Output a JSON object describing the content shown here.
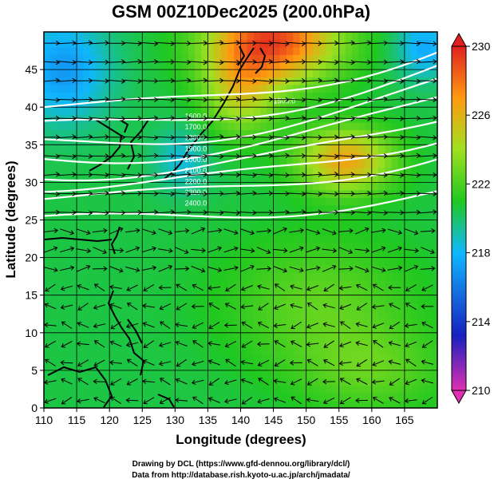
{
  "title": "GSM 00Z10Dec2025 (200.0hPa)",
  "xlabel": "Longitude (degrees)",
  "ylabel": "Latitude (degrees)",
  "credits": [
    "Drawing by DCL (https://www.gfd-dennou.org/library/dcl/)",
    "Data from http://database.rish.kyoto-u.ac.jp/arch/jmadata/"
  ],
  "chart_data": {
    "type": "heatmap",
    "title": "GSM 00Z10Dec2025 (200.0hPa)",
    "xlabel": "Longitude (degrees)",
    "ylabel": "Latitude (degrees)",
    "xlim": [
      110,
      170
    ],
    "ylim": [
      0,
      50
    ],
    "xticks": [
      110,
      115,
      120,
      125,
      130,
      135,
      140,
      145,
      150,
      155,
      160,
      165
    ],
    "yticks": [
      0,
      5,
      10,
      15,
      20,
      25,
      30,
      35,
      40,
      45
    ],
    "colorbar": {
      "min": 210,
      "max": 230,
      "ticks": [
        210,
        214,
        218,
        222,
        226,
        230
      ],
      "colors": [
        "#e02fb0",
        "#1820c0",
        "#10b8ff",
        "#20c820",
        "#a0e020",
        "#ff9a10",
        "#e02020"
      ]
    },
    "temperature_field": {
      "background": 220.5,
      "features": [
        {
          "lon": 145,
          "lat": 49,
          "value": 229,
          "sigma_lon": 7,
          "sigma_lat": 4
        },
        {
          "lon": 156,
          "lat": 33,
          "value": 226.5,
          "sigma_lon": 5,
          "sigma_lat": 3
        },
        {
          "lon": 113,
          "lat": 45,
          "value": 217,
          "sigma_lon": 5,
          "sigma_lat": 5
        },
        {
          "lon": 168,
          "lat": 48,
          "value": 217.5,
          "sigma_lon": 3,
          "sigma_lat": 3
        },
        {
          "lon": 131,
          "lat": 33,
          "value": 218.5,
          "sigma_lon": 3,
          "sigma_lat": 3
        },
        {
          "lon": 140,
          "lat": 42,
          "value": 224.5,
          "sigma_lon": 4,
          "sigma_lat": 4
        },
        {
          "lon": 152,
          "lat": 14,
          "value": 222.5,
          "sigma_lon": 10,
          "sigma_lat": 6
        },
        {
          "lon": 160,
          "lat": 5,
          "value": 222.3,
          "sigma_lon": 8,
          "sigma_lat": 4
        }
      ]
    },
    "wind_speed_contours": {
      "color": "#ffffff",
      "lines": [
        {
          "lat_west": 40.0,
          "lat_east": 47.5
        },
        {
          "lat_west": 37.5,
          "lat_east": 45.0
        },
        {
          "lat_west": 35.0,
          "lat_east": 43.0
        },
        {
          "lat_west": 33.0,
          "lat_east": 41.0
        },
        {
          "lat_west": 31.0,
          "lat_east": 38.5
        },
        {
          "lat_west": 29.5,
          "lat_east": 36.0
        },
        {
          "lat_west": 28.0,
          "lat_east": 33.5
        },
        {
          "lat_west": 25.0,
          "lat_east": 28.5
        }
      ],
      "labels": [
        "1600.0",
        "1700.0",
        "1800.0",
        "1900.0",
        "2000.0",
        "2100.0",
        "2200.0",
        "2300.0",
        "2400.0",
        "1500.0"
      ]
    },
    "wind_vector_grid": {
      "lon_step": 2.5,
      "lat_step": 2.5,
      "lon_range": [
        111,
        169
      ],
      "lat_range": [
        1,
        49
      ],
      "jet_lat_band": [
        25,
        45
      ],
      "direction_description": "westerly in the north, easterly trade winds in the tropics"
    }
  }
}
